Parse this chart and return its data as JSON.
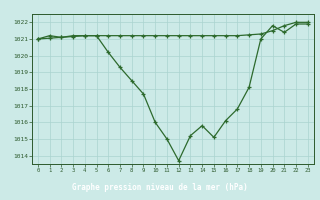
{
  "title": "Graphe pression niveau de la mer (hPa)",
  "x": [
    0,
    1,
    2,
    3,
    4,
    5,
    6,
    7,
    8,
    9,
    10,
    11,
    12,
    13,
    14,
    15,
    16,
    17,
    18,
    19,
    20,
    21,
    22,
    23
  ],
  "y_main": [
    1021.0,
    1021.2,
    1021.1,
    1021.2,
    1021.2,
    1021.2,
    1020.2,
    1019.3,
    1018.5,
    1017.7,
    1016.0,
    1015.0,
    1013.7,
    1015.2,
    1015.8,
    1015.1,
    1016.1,
    1016.8,
    1018.1,
    1021.0,
    1021.8,
    1021.4,
    1021.9,
    1021.9
  ],
  "y_flat": [
    1021.0,
    1021.05,
    1021.1,
    1021.15,
    1021.2,
    1021.2,
    1021.2,
    1021.2,
    1021.2,
    1021.2,
    1021.2,
    1021.2,
    1021.2,
    1021.2,
    1021.2,
    1021.2,
    1021.2,
    1021.2,
    1021.25,
    1021.3,
    1021.5,
    1021.8,
    1022.0,
    1022.0
  ],
  "ylim_min": 1013.5,
  "ylim_max": 1022.5,
  "yticks": [
    1014,
    1015,
    1016,
    1017,
    1018,
    1019,
    1020,
    1021,
    1022
  ],
  "xticks": [
    0,
    1,
    2,
    3,
    4,
    5,
    6,
    7,
    8,
    9,
    10,
    11,
    12,
    13,
    14,
    15,
    16,
    17,
    18,
    19,
    20,
    21,
    22,
    23
  ],
  "line_color": "#2d6a2d",
  "bg_color": "#cceae7",
  "grid_color": "#aad4d0",
  "title_bg": "#2d6a2d",
  "title_fg": "#ffffff",
  "tick_color": "#2d5a2d"
}
